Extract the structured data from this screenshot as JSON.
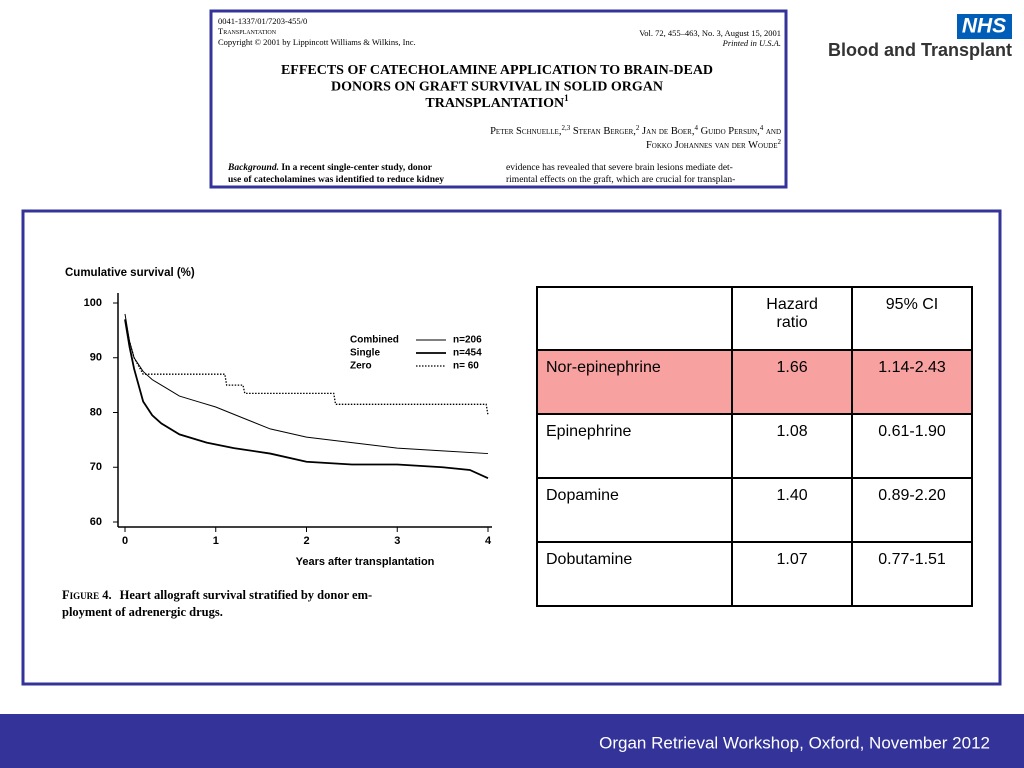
{
  "paper": {
    "code": "0041-1337/01/7203-455/0",
    "journal": "Transplantation",
    "copyright": "Copyright © 2001 by Lippincott Williams & Wilkins, Inc.",
    "volume": "Vol. 72, 455–463, No. 3, August 15, 2001",
    "printed": "Printed in U.S.A.",
    "title": [
      "EFFECTS OF CATECHOLAMINE APPLICATION TO BRAIN-DEAD",
      "DONORS ON GRAFT SURVIVAL IN SOLID ORGAN",
      "TRANSPLANTATION"
    ],
    "title_sup": "1",
    "authors": [
      [
        {
          "text": "Peter Schnuelle,",
          "sup": "2,3"
        },
        {
          "text": " Stefan Berger,",
          "sup": "2"
        },
        {
          "text": " Jan de Boer,",
          "sup": "4"
        },
        {
          "text": " Guido Persijn,",
          "sup": "4"
        },
        {
          "text": " and"
        }
      ],
      [
        {
          "text": "Fokko Johannes van der Woude",
          "sup": "2"
        }
      ]
    ],
    "abstract_label": "Background.",
    "abstract_left": [
      " In a recent single-center study, donor",
      "use of catecholamines was identified to reduce kidney"
    ],
    "abstract_right": [
      "evidence has revealed that severe brain lesions mediate det-",
      "rimental effects on the graft, which are crucial for transplan-"
    ]
  },
  "logo": {
    "mark": "NHS",
    "text": "Blood and Transplant"
  },
  "chart_data": {
    "type": "line",
    "ylabel": "Cumulative survival (%)",
    "xlabel": "Years after transplantation",
    "xlim": [
      0,
      4
    ],
    "xticks": [
      0,
      1,
      2,
      3,
      4
    ],
    "ylim": [
      60,
      100
    ],
    "yticks": [
      60,
      70,
      80,
      90,
      100
    ],
    "series": [
      {
        "name": "Combined",
        "label": "n=206",
        "style": "thin",
        "color": "#000000",
        "x": [
          0,
          0.05,
          0.1,
          0.2,
          0.3,
          0.45,
          0.6,
          0.8,
          1.0,
          1.3,
          1.6,
          2.0,
          2.5,
          3.0,
          3.5,
          4.0
        ],
        "values": [
          98,
          93,
          90,
          87.5,
          86,
          84.5,
          83,
          82,
          81,
          79,
          77,
          75.5,
          74.5,
          73.5,
          73,
          72.5
        ]
      },
      {
        "name": "Single",
        "label": "n=454",
        "style": "thick",
        "color": "#000000",
        "x": [
          0,
          0.05,
          0.1,
          0.2,
          0.3,
          0.4,
          0.6,
          0.9,
          1.2,
          1.6,
          2.0,
          2.5,
          3.0,
          3.5,
          3.8,
          4.0
        ],
        "values": [
          97,
          92,
          88,
          82,
          79.5,
          78,
          76,
          74.5,
          73.5,
          72.5,
          71,
          70.5,
          70.5,
          70,
          69.5,
          68
        ]
      },
      {
        "name": "Zero",
        "label": "n=  60",
        "style": "dotted",
        "color": "#000000",
        "x": [
          0,
          0.05,
          0.1,
          0.2,
          1.1,
          1.12,
          1.3,
          1.32,
          2.3,
          2.32,
          3.98,
          4.0
        ],
        "values": [
          97,
          93,
          90,
          87,
          87,
          85,
          85,
          83.5,
          83.5,
          81.5,
          81.5,
          79.5
        ]
      }
    ]
  },
  "caption": [
    "Figure 4.",
    "Heart allograft survival stratified by donor em-",
    "ployment of adrenergic drugs."
  ],
  "table": {
    "header": [
      "Hazard ratio",
      "95% CI"
    ],
    "rows": [
      [
        "Nor-epinephrine",
        "1.66",
        "1.14-2.43"
      ],
      [
        "Epinephrine",
        "1.08",
        "0.61-1.90"
      ],
      [
        "Dopamine",
        "1.40",
        "0.89-2.20"
      ],
      [
        "Dobutamine",
        "1.07",
        "0.77-1.51"
      ]
    ],
    "highlight_row": 0,
    "highlight_color": "#f7a1a1"
  },
  "footer": "Organ Retrieval Workshop, Oxford, November 2012"
}
